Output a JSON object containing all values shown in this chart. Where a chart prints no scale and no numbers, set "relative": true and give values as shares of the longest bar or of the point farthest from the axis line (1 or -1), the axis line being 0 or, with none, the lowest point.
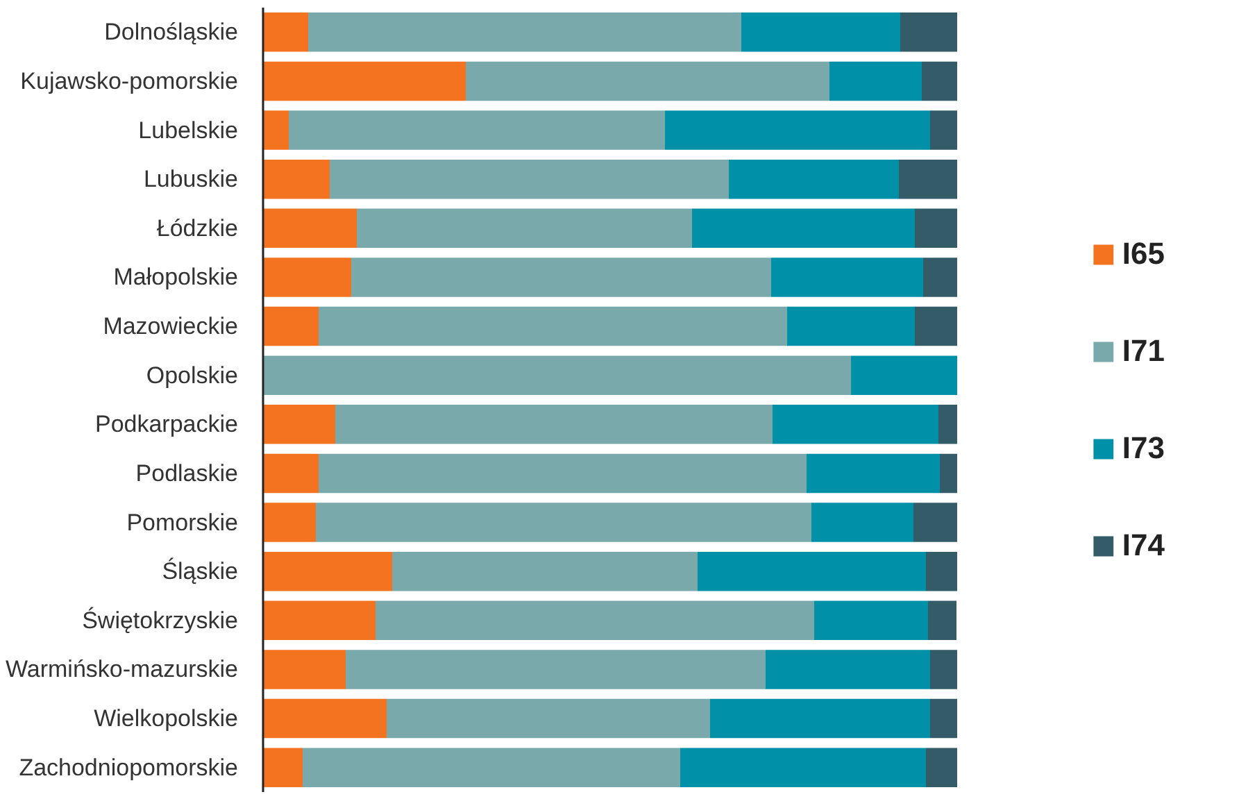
{
  "chart_data": {
    "type": "bar",
    "orientation": "horizontal",
    "stacked": true,
    "relative": true,
    "legend": "right",
    "grid": false,
    "categories": [
      "Dolnośląskie",
      "Kujawsko-pomorskie",
      "Lubelskie",
      "Lubuskie",
      "Łódzkie",
      "Małopolskie",
      "Mazowieckie",
      "Opolskie",
      "Podkarpackie",
      "Podlaskie",
      "Pomorskie",
      "Śląskie",
      "Świętokrzyskie",
      "Warmińsko-mazurskie",
      "Wielkopolskie",
      "Zachodniopomorskie"
    ],
    "series": [
      {
        "name": "I65",
        "color": "#f47321",
        "values": [
          0.065,
          0.292,
          0.037,
          0.096,
          0.135,
          0.127,
          0.08,
          0,
          0.104,
          0.08,
          0.076,
          0.186,
          0.162,
          0.119,
          0.178,
          0.057
        ]
      },
      {
        "name": "I71",
        "color": "#7aa9ab",
        "values": [
          0.624,
          0.524,
          0.542,
          0.575,
          0.483,
          0.605,
          0.675,
          0.847,
          0.63,
          0.703,
          0.714,
          0.44,
          0.632,
          0.605,
          0.466,
          0.544
        ]
      },
      {
        "name": "I73",
        "color": "#0090a8",
        "values": [
          0.229,
          0.133,
          0.382,
          0.245,
          0.321,
          0.219,
          0.184,
          0.153,
          0.239,
          0.192,
          0.147,
          0.329,
          0.164,
          0.237,
          0.317,
          0.354
        ]
      },
      {
        "name": "I74",
        "color": "#335b68",
        "values": [
          0.082,
          0.051,
          0.039,
          0.084,
          0.061,
          0.049,
          0.061,
          0,
          0.027,
          0.025,
          0.063,
          0.045,
          0.041,
          0.039,
          0.039,
          0.045
        ]
      }
    ]
  }
}
